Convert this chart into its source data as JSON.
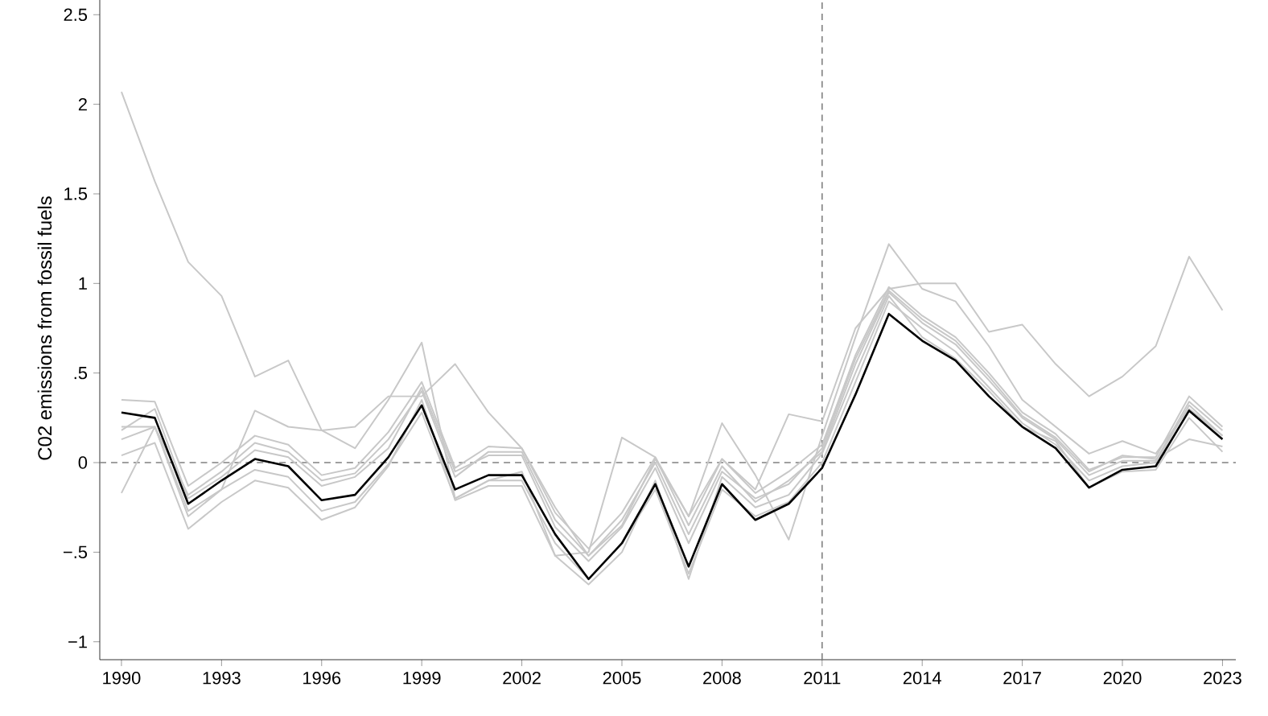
{
  "chart_data": {
    "type": "line",
    "ylabel": "C02 emissions from fossil fuels",
    "x": [
      1990,
      1991,
      1992,
      1993,
      1994,
      1995,
      1996,
      1997,
      1998,
      1999,
      2000,
      2001,
      2002,
      2003,
      2004,
      2005,
      2006,
      2007,
      2008,
      2009,
      2010,
      2011,
      2012,
      2013,
      2014,
      2015,
      2016,
      2017,
      2018,
      2019,
      2020,
      2021,
      2022,
      2023
    ],
    "series": [
      {
        "color": "#c8c8c8",
        "values": [
          2.07,
          1.57,
          1.12,
          0.93,
          0.48,
          0.57,
          0.18,
          0.2,
          0.37,
          0.37,
          0.55,
          0.28,
          0.08,
          -0.25,
          -0.52,
          -0.35,
          0.02,
          -0.3,
          0.02,
          -0.15,
          0.27,
          0.23,
          0.75,
          0.97,
          1.0,
          1.0,
          0.73,
          0.77,
          0.55,
          0.37,
          0.48,
          0.65,
          1.15,
          0.85
        ]
      },
      {
        "color": "#c8c8c8",
        "values": [
          -0.17,
          0.2,
          -0.3,
          -0.15,
          0.29,
          0.2,
          0.18,
          0.08,
          0.35,
          0.67,
          -0.2,
          -0.1,
          -0.05,
          -0.52,
          -0.5,
          0.14,
          0.03,
          -0.3,
          0.22,
          -0.07,
          -0.43,
          0.15,
          0.7,
          1.22,
          0.97,
          0.9,
          0.65,
          0.35,
          0.2,
          0.05,
          0.12,
          0.05,
          0.3,
          0.15
        ]
      },
      {
        "color": "#c8c8c8",
        "values": [
          0.35,
          0.34,
          -0.13,
          0.0,
          0.15,
          0.1,
          -0.07,
          -0.03,
          0.17,
          0.45,
          -0.03,
          0.09,
          0.08,
          -0.28,
          -0.48,
          -0.28,
          0.03,
          -0.35,
          0.02,
          -0.17,
          -0.05,
          0.1,
          0.6,
          0.98,
          0.82,
          0.7,
          0.5,
          0.28,
          0.16,
          -0.04,
          0.03,
          0.03,
          0.37,
          0.2
        ]
      },
      {
        "color": "#c8c8c8",
        "values": [
          0.2,
          0.2,
          -0.18,
          -0.05,
          0.11,
          0.06,
          -0.1,
          -0.06,
          0.13,
          0.4,
          -0.08,
          0.06,
          0.06,
          -0.32,
          -0.52,
          -0.32,
          0.0,
          -0.4,
          -0.02,
          -0.22,
          -0.1,
          0.06,
          0.55,
          0.95,
          0.78,
          0.66,
          0.46,
          0.25,
          0.13,
          -0.07,
          0.01,
          0.01,
          0.34,
          0.18
        ]
      },
      {
        "color": "#c8c8c8",
        "values": [
          0.13,
          0.2,
          -0.27,
          -0.15,
          -0.04,
          -0.08,
          -0.27,
          -0.22,
          -0.01,
          0.28,
          -0.2,
          -0.1,
          -0.1,
          -0.45,
          -0.65,
          -0.45,
          -0.15,
          -0.62,
          -0.15,
          -0.3,
          -0.22,
          0.0,
          0.45,
          0.9,
          0.75,
          0.62,
          0.42,
          0.22,
          0.1,
          -0.1,
          -0.02,
          0.0,
          0.32,
          0.15
        ]
      },
      {
        "color": "#c8c8c8",
        "values": [
          0.04,
          0.11,
          -0.37,
          -0.22,
          -0.1,
          -0.14,
          -0.32,
          -0.25,
          -0.02,
          0.35,
          -0.21,
          -0.13,
          -0.13,
          -0.52,
          -0.68,
          -0.5,
          -0.1,
          -0.65,
          -0.08,
          -0.25,
          -0.18,
          0.05,
          0.5,
          0.93,
          0.7,
          0.58,
          0.4,
          0.2,
          0.12,
          -0.14,
          -0.05,
          -0.04,
          0.25,
          0.06
        ]
      },
      {
        "color": "#c8c8c8",
        "values": [
          0.18,
          0.3,
          -0.2,
          -0.08,
          0.07,
          0.03,
          -0.13,
          -0.08,
          0.08,
          0.42,
          -0.05,
          0.04,
          0.04,
          -0.36,
          -0.55,
          -0.36,
          -0.03,
          -0.45,
          -0.05,
          -0.2,
          -0.12,
          0.08,
          0.58,
          0.96,
          0.8,
          0.68,
          0.48,
          0.26,
          0.14,
          -0.05,
          0.04,
          0.02,
          0.13,
          0.09
        ]
      },
      {
        "color": "#000000",
        "values": [
          0.28,
          0.25,
          -0.23,
          -0.1,
          0.02,
          -0.02,
          -0.21,
          -0.18,
          0.03,
          0.32,
          -0.15,
          -0.07,
          -0.07,
          -0.4,
          -0.65,
          -0.45,
          -0.12,
          -0.58,
          -0.12,
          -0.32,
          -0.23,
          -0.03,
          0.38,
          0.83,
          0.68,
          0.57,
          0.37,
          0.2,
          0.08,
          -0.14,
          -0.04,
          -0.02,
          0.29,
          0.13
        ]
      }
    ],
    "xlim": [
      1989.35,
      2023.4
    ],
    "ylim": [
      -1.1,
      2.6
    ],
    "xticks": [
      1990,
      1993,
      1996,
      1999,
      2002,
      2005,
      2008,
      2011,
      2014,
      2017,
      2020,
      2023
    ],
    "yticks": [
      {
        "value": -1,
        "label": "−1"
      },
      {
        "value": -0.5,
        "label": "−.5"
      },
      {
        "value": 0,
        "label": "0"
      },
      {
        "value": 0.5,
        "label": ".5"
      },
      {
        "value": 1,
        "label": "1"
      },
      {
        "value": 1.5,
        "label": "1.5"
      },
      {
        "value": 2,
        "label": "2"
      },
      {
        "value": 2.5,
        "label": "2.5"
      }
    ],
    "ref_lines": [
      {
        "axis": "x",
        "value": 2011,
        "color": "#808080",
        "line_style": "dashed"
      },
      {
        "axis": "y",
        "value": 0,
        "color": "#808080",
        "line_style": "dashed"
      }
    ],
    "grid": false,
    "marker": "none",
    "line_style": "solid"
  }
}
